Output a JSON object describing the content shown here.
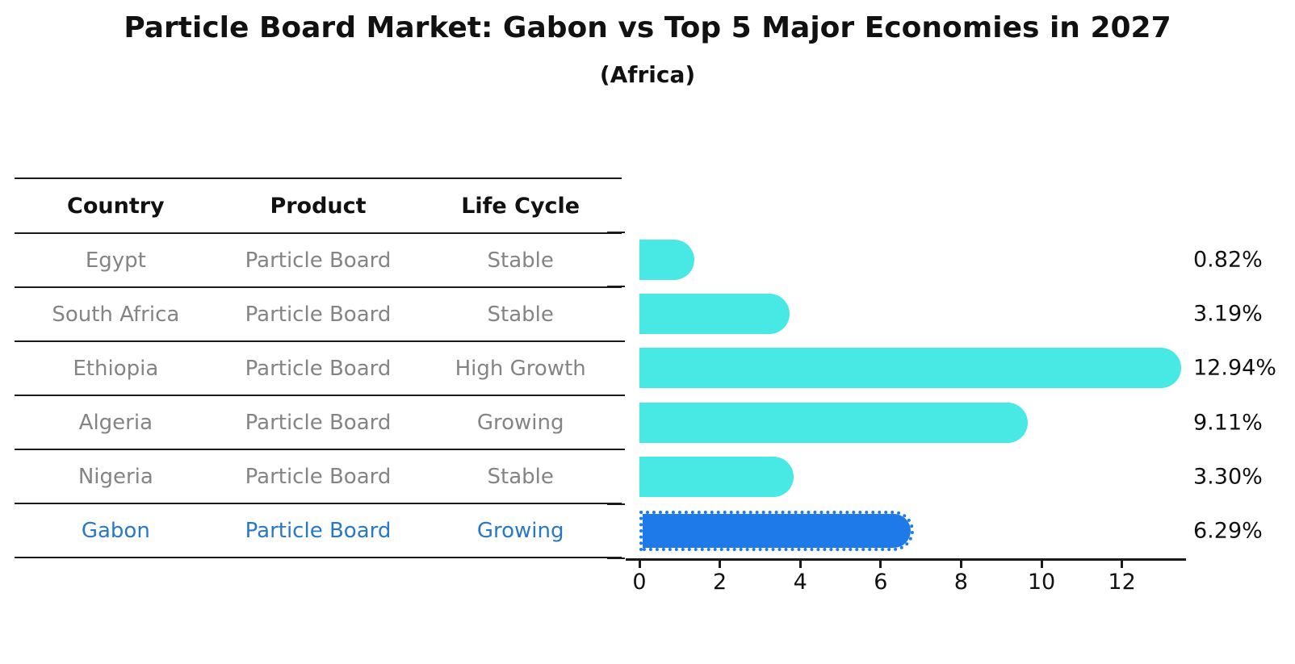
{
  "title": "Particle Board Market: Gabon vs Top 5 Major Economies in 2027",
  "subtitle": "(Africa)",
  "table": {
    "headers": [
      "Country",
      "Product",
      "Life Cycle"
    ],
    "rows": [
      {
        "country": "Egypt",
        "product": "Particle Board",
        "life_cycle": "Stable",
        "highlight": false
      },
      {
        "country": "South Africa",
        "product": "Particle Board",
        "life_cycle": "Stable",
        "highlight": false
      },
      {
        "country": "Ethiopia",
        "product": "Particle Board",
        "life_cycle": "High Growth",
        "highlight": false
      },
      {
        "country": "Algeria",
        "product": "Particle Board",
        "life_cycle": "Growing",
        "highlight": false
      },
      {
        "country": "Nigeria",
        "product": "Particle Board",
        "life_cycle": "Stable",
        "highlight": false
      },
      {
        "country": "Gabon",
        "product": "Particle Board",
        "life_cycle": "Growing",
        "highlight": true
      }
    ]
  },
  "chart_data": {
    "type": "bar",
    "orientation": "horizontal",
    "title": "Particle Board Market: Gabon vs Top 5 Major Economies in 2027 (Africa)",
    "categories": [
      "Egypt",
      "South Africa",
      "Ethiopia",
      "Algeria",
      "Nigeria",
      "Gabon"
    ],
    "values": [
      0.82,
      3.19,
      12.94,
      9.11,
      3.3,
      6.29
    ],
    "value_labels": [
      "0.82%",
      "3.19%",
      "12.94%",
      "9.11%",
      "3.30%",
      "6.29%"
    ],
    "x_ticks": [
      0,
      2,
      4,
      6,
      8,
      10,
      12
    ],
    "xlim": [
      0,
      13.6
    ],
    "highlight_index": 5,
    "grid": false,
    "legend": "none"
  },
  "colors": {
    "bar": "#48E9E4",
    "bar-highlight": "#1E7AE8",
    "highlight-text": "#2878C8",
    "table-text": "#848484",
    "ink": "#111111"
  }
}
